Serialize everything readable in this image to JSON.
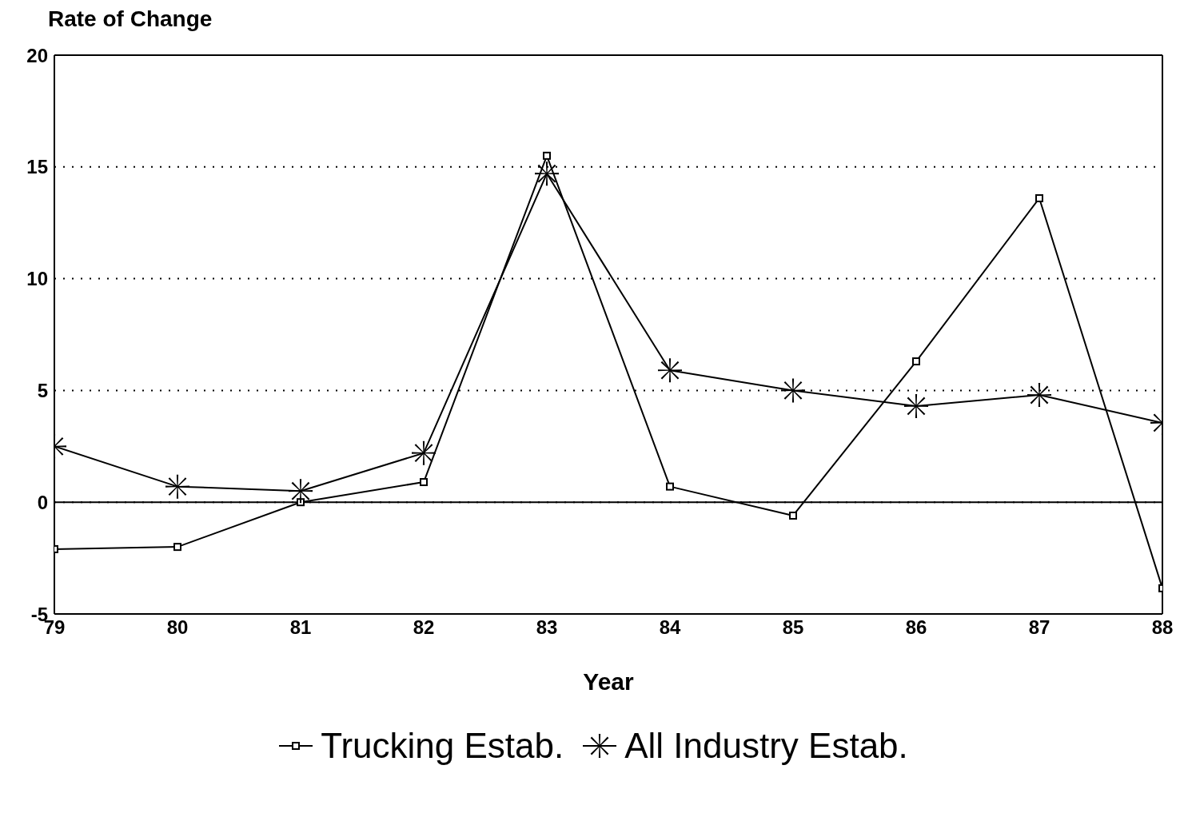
{
  "chart_data": {
    "type": "line",
    "ylabel": "Rate of Change",
    "xlabel": "Year",
    "x": [
      79,
      80,
      81,
      82,
      83,
      84,
      85,
      86,
      87,
      88
    ],
    "xlim": [
      79,
      88
    ],
    "xticks": [
      79,
      80,
      81,
      82,
      83,
      84,
      85,
      86,
      87,
      88
    ],
    "ylim": [
      -5,
      20
    ],
    "yticks": [
      -5,
      0,
      5,
      10,
      15,
      20
    ],
    "grid": "y",
    "legend": "bottom",
    "line_style": "solid",
    "ref_lines": [
      {
        "axis": "y",
        "value": 0,
        "color": "#000000",
        "line_style": "solid"
      }
    ],
    "series": [
      {
        "name": "Trucking Estab.",
        "color": "#000000",
        "marker": "square",
        "values": [
          -2.1,
          -2.0,
          0,
          0.9,
          15.5,
          0.7,
          -0.6,
          6.3,
          13.6,
          -3.85
        ]
      },
      {
        "name": "All Industry Estab.",
        "color": "#000000",
        "marker": "cross",
        "values": [
          2.5,
          0.7,
          0.5,
          2.2,
          14.7,
          5.9,
          5.0,
          4.3,
          4.8,
          3.55
        ]
      }
    ]
  }
}
